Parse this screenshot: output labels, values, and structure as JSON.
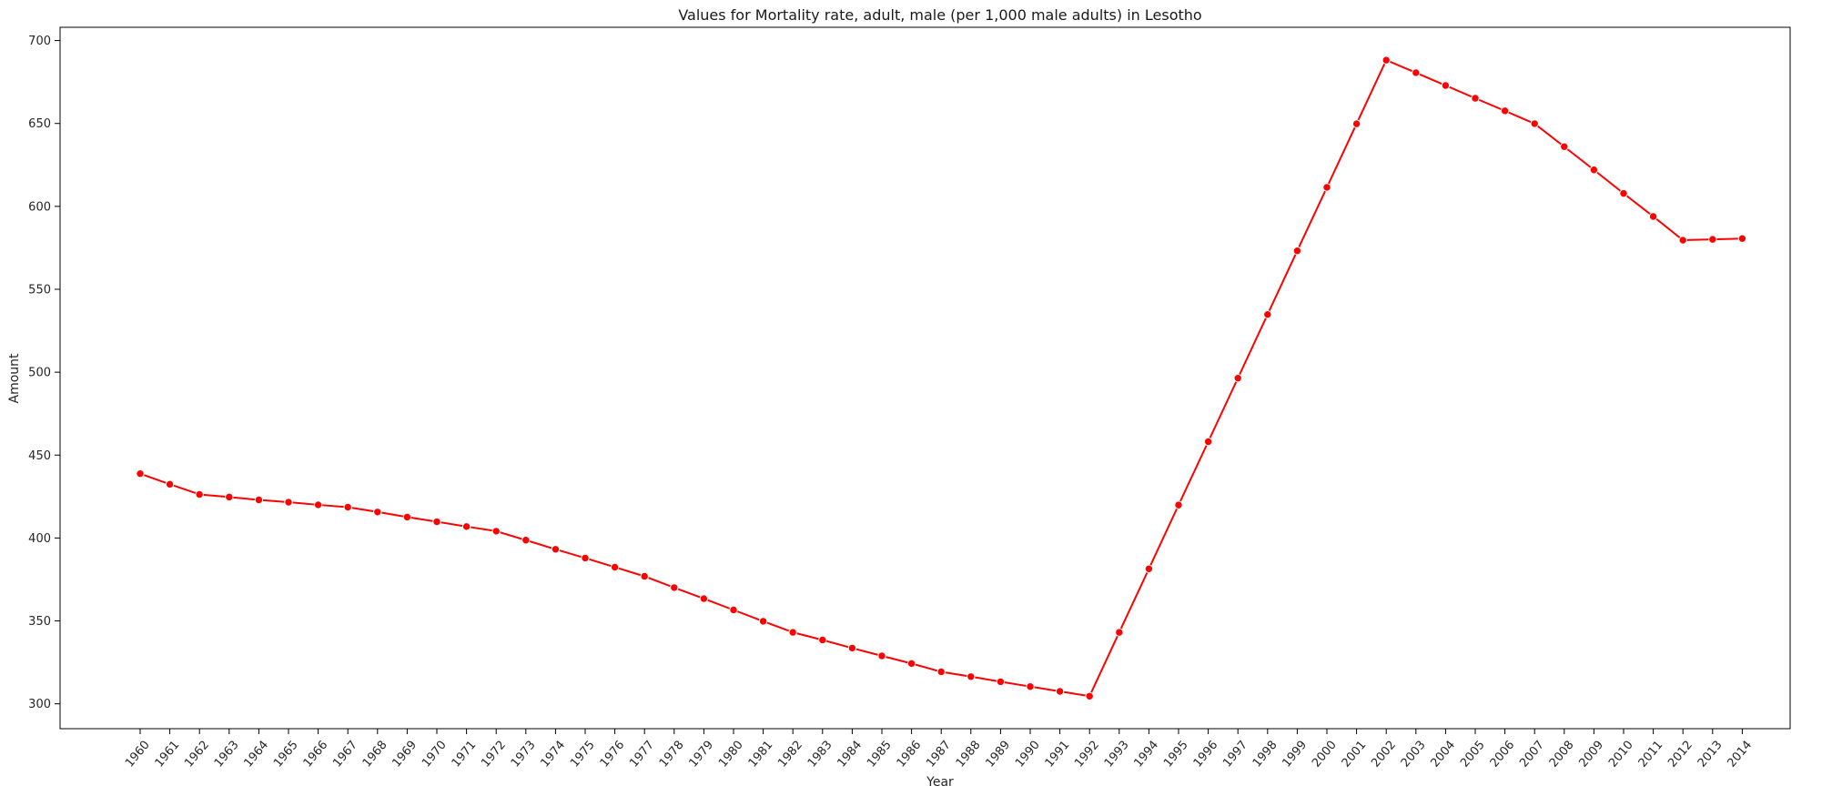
{
  "chart_data": {
    "type": "line",
    "title": "Values for Mortality rate, adult, male (per 1,000 male adults) in Lesotho",
    "xlabel": "Year",
    "ylabel": "Amount",
    "ylim": [
      285,
      708
    ],
    "yticks": [
      300,
      350,
      400,
      450,
      500,
      550,
      600,
      650,
      700
    ],
    "grid": false,
    "legend": "none",
    "line_color": "#ff0000",
    "x": [
      "1960",
      "1961",
      "1962",
      "1963",
      "1964",
      "1965",
      "1966",
      "1967",
      "1968",
      "1969",
      "1970",
      "1971",
      "1972",
      "1973",
      "1974",
      "1975",
      "1976",
      "1977",
      "1978",
      "1979",
      "1980",
      "1981",
      "1982",
      "1983",
      "1984",
      "1985",
      "1986",
      "1987",
      "1988",
      "1989",
      "1990",
      "1991",
      "1992",
      "1993",
      "1994",
      "1995",
      "1996",
      "1997",
      "1998",
      "1999",
      "2000",
      "2001",
      "2002",
      "2003",
      "2004",
      "2005",
      "2006",
      "2007",
      "2008",
      "2009",
      "2010",
      "2011",
      "2012",
      "2013",
      "2014"
    ],
    "series": [
      {
        "values": [
          438.8,
          432.4,
          426.3,
          424.7,
          423.0,
          421.6,
          420.0,
          418.6,
          415.7,
          412.6,
          409.8,
          406.9,
          404.1,
          398.7,
          393.2,
          387.9,
          382.4,
          376.9,
          370.1,
          363.4,
          356.6,
          349.8,
          343.1,
          338.5,
          333.6,
          328.9,
          324.3,
          319.3,
          316.4,
          313.3,
          310.4,
          307.5,
          304.6,
          343.1,
          381.4,
          419.9,
          458.1,
          496.4,
          534.8,
          573.2,
          611.5,
          649.8,
          688.2,
          680.6,
          672.9,
          665.2,
          657.6,
          649.9,
          636.0,
          622.0,
          607.8,
          593.9,
          579.6,
          580.1,
          580.6
        ]
      }
    ]
  }
}
